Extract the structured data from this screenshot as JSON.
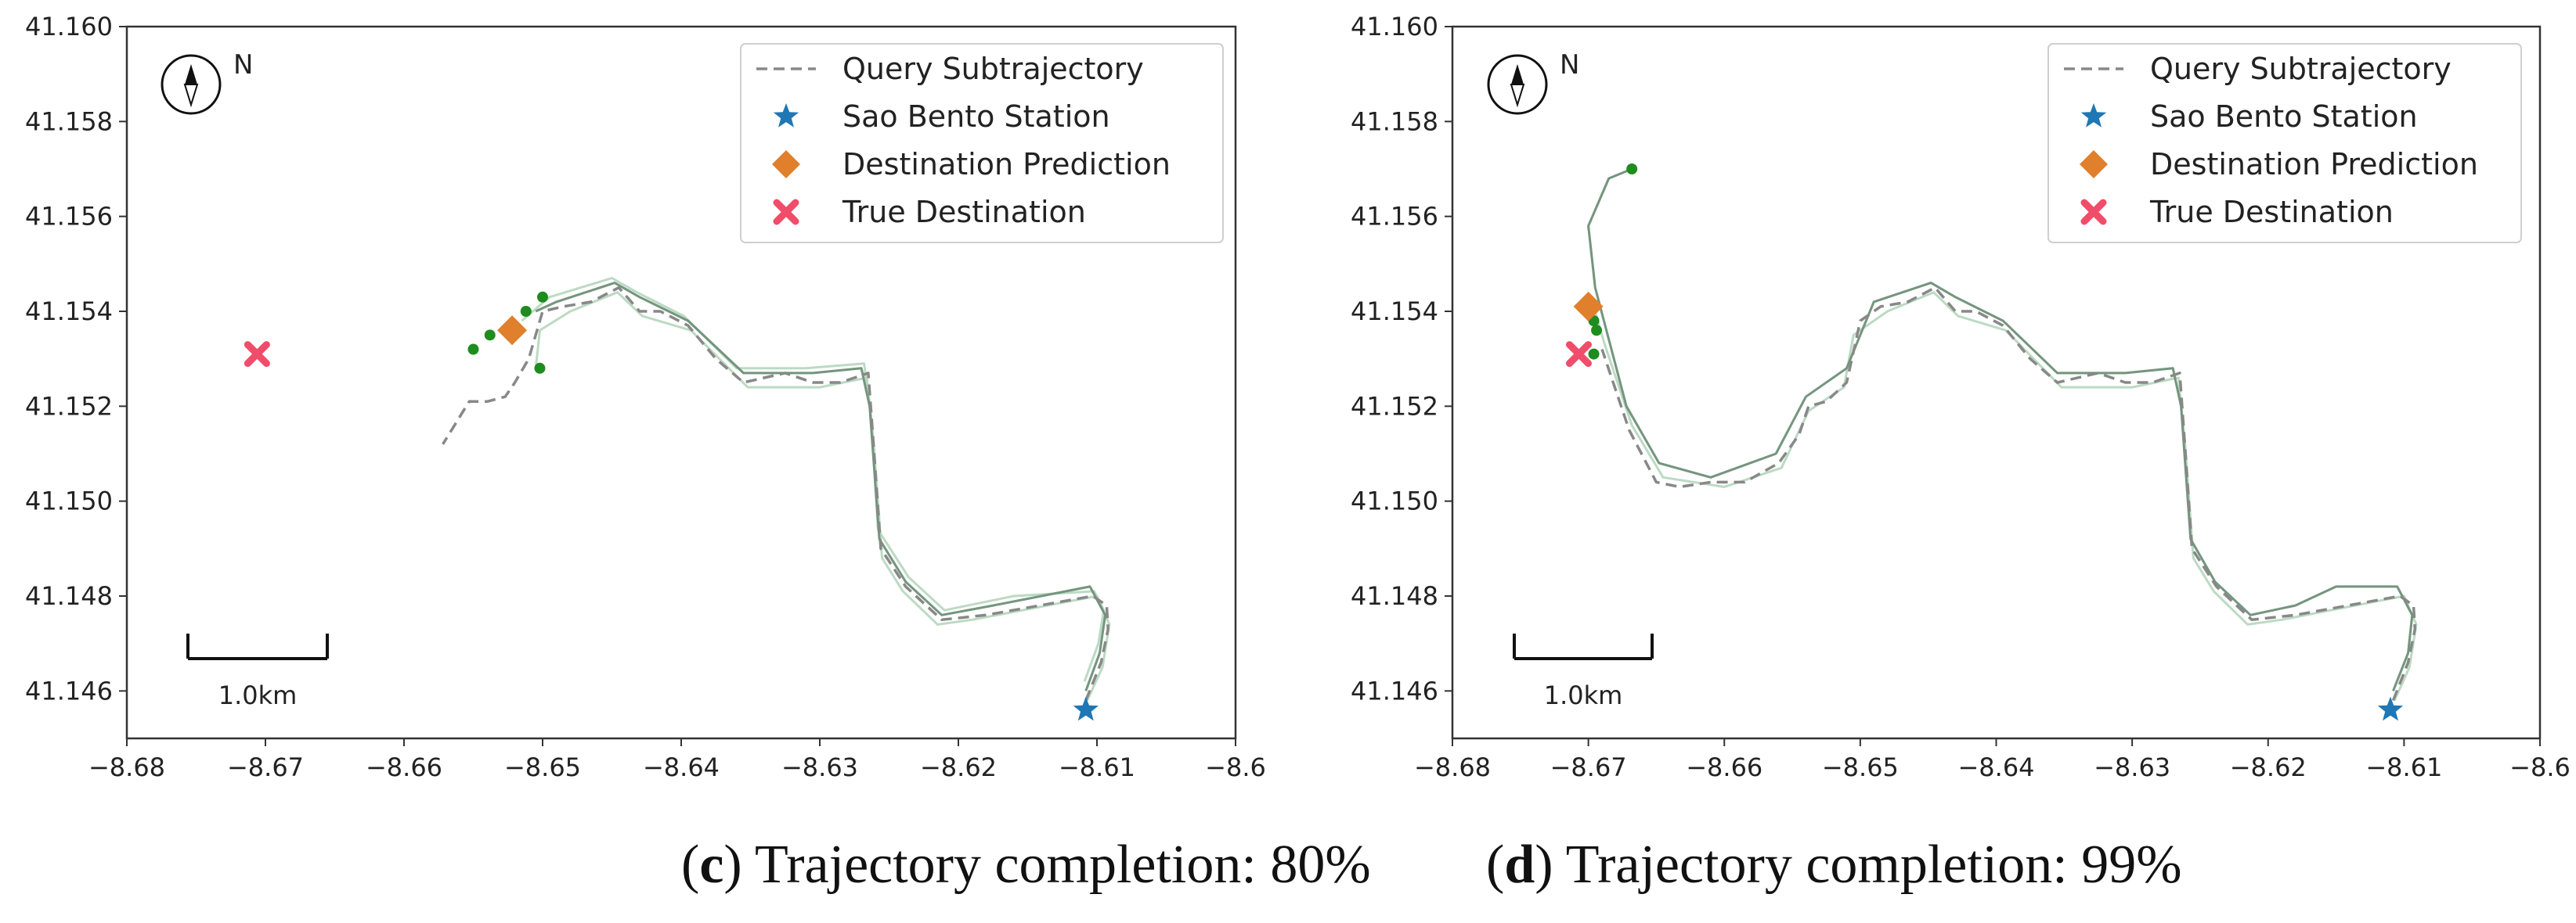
{
  "chart_data": [
    {
      "type": "line",
      "panel": "c",
      "caption": {
        "letter": "c",
        "text": "Trajectory completion: 80%"
      },
      "xlim": [
        -8.68,
        -8.6
      ],
      "ylim": [
        41.145,
        41.16
      ],
      "x_ticks": [
        -8.68,
        -8.67,
        -8.66,
        -8.65,
        -8.64,
        -8.63,
        -8.62,
        -8.61,
        -8.6
      ],
      "x_tick_labels": [
        "−8.68",
        "−8.67",
        "−8.66",
        "−8.65",
        "−8.64",
        "−8.63",
        "−8.62",
        "−8.61",
        "−8.6"
      ],
      "y_ticks": [
        41.146,
        41.148,
        41.15,
        41.152,
        41.154,
        41.156,
        41.158,
        41.16
      ],
      "y_tick_labels": [
        "41.146",
        "41.148",
        "41.150",
        "41.152",
        "41.154",
        "41.156",
        "41.158",
        "41.160"
      ],
      "legend": [
        "Query Subtrajectory",
        "Sao Bento Station",
        "Destination Prediction",
        "True Destination"
      ],
      "north_label": "N",
      "scale_label": "1.0km",
      "query_subtrajectory": [
        [
          -8.6108,
          41.1458
        ],
        [
          -8.6097,
          41.1466
        ],
        [
          -8.6092,
          41.1473
        ],
        [
          -8.6093,
          41.1478
        ],
        [
          -8.6103,
          41.148
        ],
        [
          -8.618,
          41.1476
        ],
        [
          -8.6212,
          41.1475
        ],
        [
          -8.6238,
          41.1482
        ],
        [
          -8.6256,
          41.149
        ],
        [
          -8.6262,
          41.1515
        ],
        [
          -8.6265,
          41.1527
        ],
        [
          -8.6285,
          41.1525
        ],
        [
          -8.6305,
          41.1525
        ],
        [
          -8.6325,
          41.1527
        ],
        [
          -8.6355,
          41.1525
        ],
        [
          -8.6375,
          41.153
        ],
        [
          -8.6395,
          41.1537
        ],
        [
          -8.6415,
          41.154
        ],
        [
          -8.643,
          41.154
        ],
        [
          -8.6445,
          41.1545
        ],
        [
          -8.6465,
          41.1542
        ],
        [
          -8.6485,
          41.1541
        ],
        [
          -8.65,
          41.154
        ],
        [
          -8.651,
          41.153
        ],
        [
          -8.652,
          41.1525
        ],
        [
          -8.6527,
          41.1522
        ],
        [
          -8.654,
          41.1521
        ],
        [
          -8.6553,
          41.1521
        ],
        [
          -8.6572,
          41.1512
        ]
      ],
      "candidate_trajectories": [
        [
          [
            -8.6108,
            41.146
          ],
          [
            -8.6098,
            41.1468
          ],
          [
            -8.6094,
            41.1476
          ],
          [
            -8.6105,
            41.1482
          ],
          [
            -8.6175,
            41.1478
          ],
          [
            -8.6212,
            41.1476
          ],
          [
            -8.6238,
            41.1483
          ],
          [
            -8.6257,
            41.1492
          ],
          [
            -8.6264,
            41.152
          ],
          [
            -8.627,
            41.1528
          ],
          [
            -8.6305,
            41.1527
          ],
          [
            -8.6355,
            41.1527
          ],
          [
            -8.6395,
            41.1538
          ],
          [
            -8.643,
            41.1543
          ],
          [
            -8.6448,
            41.1546
          ],
          [
            -8.649,
            41.1542
          ],
          [
            -8.6505,
            41.154
          ]
        ],
        [
          [
            -8.6107,
            41.1458
          ],
          [
            -8.6096,
            41.1465
          ],
          [
            -8.6091,
            41.1474
          ],
          [
            -8.61,
            41.148
          ],
          [
            -8.619,
            41.1475
          ],
          [
            -8.6215,
            41.1474
          ],
          [
            -8.624,
            41.1481
          ],
          [
            -8.6255,
            41.1488
          ],
          [
            -8.6261,
            41.1512
          ],
          [
            -8.6266,
            41.1526
          ],
          [
            -8.63,
            41.1524
          ],
          [
            -8.6352,
            41.1524
          ],
          [
            -8.6393,
            41.1536
          ],
          [
            -8.6428,
            41.1539
          ],
          [
            -8.6446,
            41.1544
          ],
          [
            -8.648,
            41.154
          ],
          [
            -8.6502,
            41.1536
          ],
          [
            -8.6505,
            41.1528
          ]
        ],
        [
          [
            -8.6109,
            41.1462
          ],
          [
            -8.6099,
            41.147
          ],
          [
            -8.6095,
            41.1477
          ],
          [
            -8.6102,
            41.1481
          ],
          [
            -8.616,
            41.148
          ],
          [
            -8.621,
            41.1477
          ],
          [
            -8.6236,
            41.1484
          ],
          [
            -8.6258,
            41.1494
          ],
          [
            -8.6263,
            41.1518
          ],
          [
            -8.6268,
            41.1529
          ],
          [
            -8.631,
            41.1528
          ],
          [
            -8.636,
            41.1528
          ],
          [
            -8.6398,
            41.1539
          ],
          [
            -8.6432,
            41.1544
          ],
          [
            -8.645,
            41.1547
          ],
          [
            -8.6495,
            41.1543
          ],
          [
            -8.6515,
            41.1538
          ]
        ]
      ],
      "candidate_endpoints": [
        [
          -8.655,
          41.1532
        ],
        [
          -8.6538,
          41.1535
        ],
        [
          -8.6512,
          41.154
        ],
        [
          -8.65,
          41.1543
        ],
        [
          -8.6502,
          41.1528
        ]
      ],
      "sao_bento_station": [
        -8.6108,
        41.1456
      ],
      "destination_prediction": [
        -8.6522,
        41.1536
      ],
      "true_destination": [
        -8.6706,
        41.1531
      ],
      "colors": {
        "query": "#888888",
        "candidate": "#b5d6bd",
        "endpoint": "#1e8c1e",
        "station": "#1f77b4",
        "prediction": "#e07f2c",
        "true_destination": "#f04d6a",
        "combined": "#5e7e68"
      }
    },
    {
      "type": "line",
      "panel": "d",
      "caption": {
        "letter": "d",
        "text": "Trajectory completion: 99%"
      },
      "xlim": [
        -8.68,
        -8.6
      ],
      "ylim": [
        41.145,
        41.16
      ],
      "x_ticks": [
        -8.68,
        -8.67,
        -8.66,
        -8.65,
        -8.64,
        -8.63,
        -8.62,
        -8.61,
        -8.6
      ],
      "x_tick_labels": [
        "−8.68",
        "−8.67",
        "−8.66",
        "−8.65",
        "−8.64",
        "−8.63",
        "−8.62",
        "−8.61",
        "−8.6"
      ],
      "y_ticks": [
        41.146,
        41.148,
        41.15,
        41.152,
        41.154,
        41.156,
        41.158,
        41.16
      ],
      "y_tick_labels": [
        "41.146",
        "41.148",
        "41.150",
        "41.152",
        "41.154",
        "41.156",
        "41.158",
        "41.160"
      ],
      "legend": [
        "Query Subtrajectory",
        "Sao Bento Station",
        "Destination Prediction",
        "True Destination"
      ],
      "north_label": "N",
      "scale_label": "1.0km",
      "query_subtrajectory": [
        [
          -8.6108,
          41.1458
        ],
        [
          -8.6097,
          41.1466
        ],
        [
          -8.6092,
          41.1473
        ],
        [
          -8.6093,
          41.1478
        ],
        [
          -8.6103,
          41.148
        ],
        [
          -8.618,
          41.1476
        ],
        [
          -8.6212,
          41.1475
        ],
        [
          -8.6238,
          41.1482
        ],
        [
          -8.6256,
          41.149
        ],
        [
          -8.6262,
          41.1515
        ],
        [
          -8.6265,
          41.1527
        ],
        [
          -8.6285,
          41.1525
        ],
        [
          -8.6305,
          41.1525
        ],
        [
          -8.6325,
          41.1527
        ],
        [
          -8.6355,
          41.1525
        ],
        [
          -8.6375,
          41.153
        ],
        [
          -8.6395,
          41.1537
        ],
        [
          -8.6415,
          41.154
        ],
        [
          -8.643,
          41.154
        ],
        [
          -8.6445,
          41.1545
        ],
        [
          -8.6465,
          41.1542
        ],
        [
          -8.6485,
          41.1541
        ],
        [
          -8.65,
          41.1538
        ],
        [
          -8.651,
          41.1525
        ],
        [
          -8.6525,
          41.1521
        ],
        [
          -8.6538,
          41.152
        ],
        [
          -8.6545,
          41.1514
        ],
        [
          -8.656,
          41.1508
        ],
        [
          -8.6585,
          41.1504
        ],
        [
          -8.661,
          41.1504
        ],
        [
          -8.6633,
          41.1503
        ],
        [
          -8.665,
          41.1504
        ],
        [
          -8.667,
          41.1515
        ],
        [
          -8.669,
          41.1532
        ]
      ],
      "candidate_trajectories": [
        [
          [
            -8.6108,
            41.146
          ],
          [
            -8.6097,
            41.1468
          ],
          [
            -8.6094,
            41.1476
          ],
          [
            -8.6105,
            41.1482
          ],
          [
            -8.615,
            41.1482
          ],
          [
            -8.618,
            41.1478
          ],
          [
            -8.6213,
            41.1476
          ],
          [
            -8.6239,
            41.1483
          ],
          [
            -8.6257,
            41.1492
          ],
          [
            -8.6264,
            41.152
          ],
          [
            -8.627,
            41.1528
          ],
          [
            -8.6305,
            41.1527
          ],
          [
            -8.6355,
            41.1527
          ],
          [
            -8.6395,
            41.1538
          ],
          [
            -8.643,
            41.1543
          ],
          [
            -8.6448,
            41.1546
          ],
          [
            -8.649,
            41.1542
          ],
          [
            -8.651,
            41.1528
          ],
          [
            -8.654,
            41.1522
          ],
          [
            -8.6562,
            41.151
          ],
          [
            -8.661,
            41.1505
          ],
          [
            -8.6648,
            41.1508
          ],
          [
            -8.6672,
            41.152
          ],
          [
            -8.6695,
            41.1545
          ],
          [
            -8.67,
            41.1558
          ],
          [
            -8.6685,
            41.1568
          ],
          [
            -8.6668,
            41.157
          ]
        ],
        [
          [
            -8.6107,
            41.1458
          ],
          [
            -8.6096,
            41.1465
          ],
          [
            -8.6091,
            41.1474
          ],
          [
            -8.61,
            41.148
          ],
          [
            -8.619,
            41.1475
          ],
          [
            -8.6215,
            41.1474
          ],
          [
            -8.624,
            41.1481
          ],
          [
            -8.6255,
            41.1488
          ],
          [
            -8.6261,
            41.1512
          ],
          [
            -8.6266,
            41.1526
          ],
          [
            -8.63,
            41.1524
          ],
          [
            -8.6352,
            41.1524
          ],
          [
            -8.6393,
            41.1536
          ],
          [
            -8.6428,
            41.1539
          ],
          [
            -8.6446,
            41.1544
          ],
          [
            -8.648,
            41.154
          ],
          [
            -8.6505,
            41.1535
          ],
          [
            -8.6512,
            41.1524
          ],
          [
            -8.6538,
            41.1519
          ],
          [
            -8.6558,
            41.1507
          ],
          [
            -8.66,
            41.1503
          ],
          [
            -8.6645,
            41.1505
          ],
          [
            -8.6668,
            41.1516
          ],
          [
            -8.6688,
            41.1533
          ],
          [
            -8.6695,
            41.154
          ]
        ]
      ],
      "candidate_endpoints": [
        [
          -8.6668,
          41.157
        ],
        [
          -8.6696,
          41.1538
        ],
        [
          -8.6694,
          41.1536
        ],
        [
          -8.6696,
          41.1531
        ]
      ],
      "sao_bento_station": [
        -8.611,
        41.1456
      ],
      "destination_prediction": [
        -8.67,
        41.1541
      ],
      "true_destination": [
        -8.6707,
        41.1531
      ],
      "colors": {
        "query": "#888888",
        "candidate": "#b5d6bd",
        "endpoint": "#1e8c1e",
        "station": "#1f77b4",
        "prediction": "#e07f2c",
        "true_destination": "#f04d6a",
        "combined": "#5e7e68"
      }
    }
  ]
}
